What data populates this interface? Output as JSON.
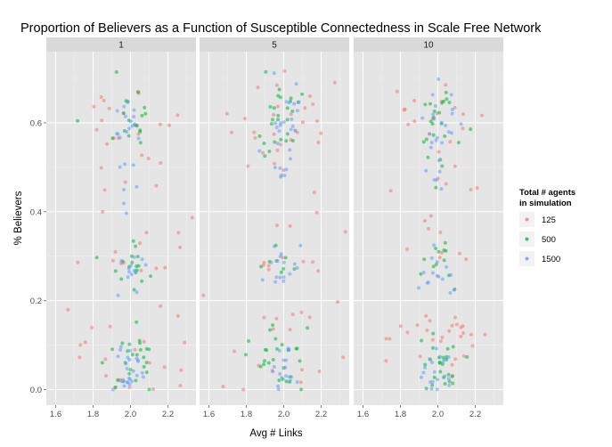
{
  "chart_data": {
    "type": "scatter",
    "title": "Proportion of Believers as a Function of Susceptible Connectedness in Scale Free Network",
    "xlabel": "Avg # Links",
    "ylabel": "% Believers",
    "facets": [
      "1",
      "5",
      "10"
    ],
    "xlim": [
      1.55,
      2.35
    ],
    "ylim": [
      -0.035,
      0.76
    ],
    "x_ticks": [
      {
        "value": 1.6,
        "label": "1.6"
      },
      {
        "value": 1.8,
        "label": "1.8"
      },
      {
        "value": 2.0,
        "label": "2.0"
      },
      {
        "value": 2.2,
        "label": "2.2"
      }
    ],
    "y_ticks": [
      {
        "value": 0.0,
        "label": "0.0"
      },
      {
        "value": 0.2,
        "label": "0.2"
      },
      {
        "value": 0.4,
        "label": "0.4"
      },
      {
        "value": 0.6,
        "label": "0.6"
      }
    ],
    "grid": true,
    "legend": {
      "title_line1": "Total # agents",
      "title_line2": "in simulation",
      "placement": "right"
    },
    "series": [
      {
        "name": "125",
        "color": "#F8766D",
        "x_spread": [
          0.2,
          0.16,
          0.16
        ],
        "counts": [
          60,
          60,
          60
        ],
        "y_clusters": [
          {
            "y": 0.62,
            "sd": 0.04,
            "w": 0.22
          },
          {
            "y": 0.5,
            "sd": 0.07,
            "w": 0.18
          },
          {
            "y": 0.3,
            "sd": 0.04,
            "w": 0.2
          },
          {
            "y": 0.15,
            "sd": 0.05,
            "w": 0.2
          },
          {
            "y": 0.05,
            "sd": 0.035,
            "w": 0.2
          }
        ],
        "facet_y_clusters": [
          null,
          null,
          [
            {
              "y": 0.63,
              "sd": 0.04,
              "w": 0.22
            },
            {
              "y": 0.48,
              "sd": 0.07,
              "w": 0.15
            },
            {
              "y": 0.32,
              "sd": 0.04,
              "w": 0.18
            },
            {
              "y": 0.14,
              "sd": 0.025,
              "w": 0.35
            },
            {
              "y": 0.06,
              "sd": 0.03,
              "w": 0.1
            }
          ]
        ]
      },
      {
        "name": "500",
        "color": "#00BA38",
        "x_spread": [
          0.07,
          0.065,
          0.055
        ],
        "counts": [
          60,
          60,
          60
        ],
        "y_clusters": [
          {
            "y": 0.62,
            "sd": 0.045,
            "w": 0.28
          },
          {
            "y": 0.52,
            "sd": 0.05,
            "w": 0.1
          },
          {
            "y": 0.28,
            "sd": 0.03,
            "w": 0.22
          },
          {
            "y": 0.09,
            "sd": 0.025,
            "w": 0.22
          },
          {
            "y": 0.03,
            "sd": 0.02,
            "w": 0.18
          }
        ]
      },
      {
        "name": "1500",
        "color": "#619CFF",
        "x_spread": [
          0.045,
          0.045,
          0.04
        ],
        "counts": [
          60,
          60,
          60
        ],
        "y_clusters": [
          {
            "y": 0.6,
            "sd": 0.04,
            "w": 0.28
          },
          {
            "y": 0.5,
            "sd": 0.04,
            "w": 0.1
          },
          {
            "y": 0.27,
            "sd": 0.025,
            "w": 0.24
          },
          {
            "y": 0.07,
            "sd": 0.02,
            "w": 0.2
          },
          {
            "y": 0.025,
            "sd": 0.012,
            "w": 0.18
          }
        ]
      }
    ]
  }
}
